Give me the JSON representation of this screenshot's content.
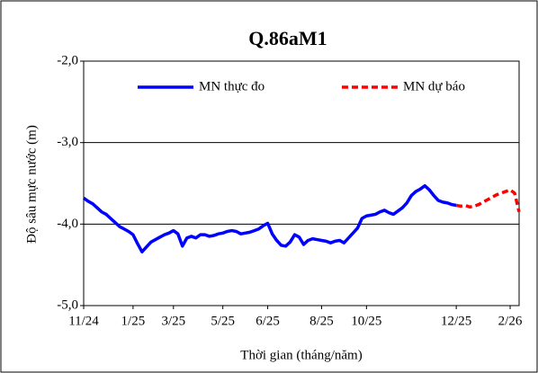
{
  "chart_data": {
    "type": "line",
    "title": "Q.86aM1",
    "x_label": "Thời gian (tháng/năm)",
    "y_label": "Độ sâu mực nước (m)",
    "categories": [
      "11/24",
      null,
      null,
      null,
      null,
      null,
      null,
      null,
      null,
      null,
      null,
      "1/25",
      null,
      null,
      null,
      null,
      null,
      null,
      null,
      null,
      "3/25",
      null,
      null,
      null,
      null,
      null,
      null,
      null,
      null,
      null,
      null,
      "5/25",
      null,
      null,
      null,
      null,
      null,
      null,
      null,
      null,
      null,
      "6/25",
      null,
      null,
      null,
      null,
      null,
      null,
      null,
      null,
      null,
      null,
      null,
      "8/25",
      null,
      null,
      null,
      null,
      null,
      null,
      null,
      null,
      null,
      "10/25",
      null,
      null,
      null,
      null,
      null,
      null,
      null,
      null,
      null,
      null,
      null,
      null,
      null,
      null,
      null,
      null,
      null,
      null,
      null,
      "12/25",
      null,
      null,
      null,
      null,
      null,
      null,
      null,
      null,
      null,
      null,
      null,
      "2/26",
      null,
      null
    ],
    "series": [
      {
        "name": "MN thực đo",
        "color": "#0000ff",
        "dashed": false,
        "values": [
          -3.68,
          -3.72,
          -3.75,
          -3.8,
          -3.85,
          -3.88,
          -3.93,
          -3.98,
          -4.03,
          -4.06,
          -4.09,
          -4.13,
          -4.24,
          -4.34,
          -4.28,
          -4.22,
          -4.19,
          -4.16,
          -4.13,
          -4.11,
          -4.08,
          -4.12,
          -4.27,
          -4.17,
          -4.15,
          -4.17,
          -4.13,
          -4.13,
          -4.15,
          -4.14,
          -4.12,
          -4.11,
          -4.09,
          -4.08,
          -4.09,
          -4.12,
          -4.11,
          -4.1,
          -4.08,
          -4.06,
          -4.02,
          -3.99,
          -4.12,
          -4.2,
          -4.26,
          -4.27,
          -4.22,
          -4.13,
          -4.16,
          -4.25,
          -4.2,
          -4.18,
          -4.19,
          -4.2,
          -4.21,
          -4.23,
          -4.21,
          -4.2,
          -4.23,
          -4.17,
          -4.11,
          -4.05,
          -3.93,
          -3.9,
          -3.89,
          -3.88,
          -3.85,
          -3.83,
          -3.86,
          -3.88,
          -3.84,
          -3.8,
          -3.74,
          -3.65,
          -3.6,
          -3.57,
          -3.53,
          -3.58,
          -3.65,
          -3.71,
          -3.73,
          -3.74,
          -3.76,
          -3.77,
          null,
          null,
          null,
          null,
          null,
          null,
          null,
          null,
          null,
          null,
          null,
          null,
          null,
          null
        ]
      },
      {
        "name": "MN dự báo",
        "color": "#ff0000",
        "dashed": true,
        "values": [
          null,
          null,
          null,
          null,
          null,
          null,
          null,
          null,
          null,
          null,
          null,
          null,
          null,
          null,
          null,
          null,
          null,
          null,
          null,
          null,
          null,
          null,
          null,
          null,
          null,
          null,
          null,
          null,
          null,
          null,
          null,
          null,
          null,
          null,
          null,
          null,
          null,
          null,
          null,
          null,
          null,
          null,
          null,
          null,
          null,
          null,
          null,
          null,
          null,
          null,
          null,
          null,
          null,
          null,
          null,
          null,
          null,
          null,
          null,
          null,
          null,
          null,
          null,
          null,
          null,
          null,
          null,
          null,
          null,
          null,
          null,
          null,
          null,
          null,
          null,
          null,
          null,
          null,
          null,
          null,
          null,
          null,
          null,
          -3.77,
          -3.78,
          -3.77,
          -3.79,
          -3.78,
          -3.76,
          -3.73,
          -3.7,
          -3.67,
          -3.64,
          -3.62,
          -3.6,
          -3.58,
          -3.62,
          -3.85
        ]
      }
    ],
    "ylim": [
      -5,
      -2
    ],
    "yticks": [
      {
        "value": -2,
        "label": "-2,0"
      },
      {
        "value": -3,
        "label": "-3,0"
      },
      {
        "value": -4,
        "label": "-4,0"
      },
      {
        "value": -5,
        "label": "-5,0"
      }
    ],
    "grid": true,
    "legend": "top"
  }
}
